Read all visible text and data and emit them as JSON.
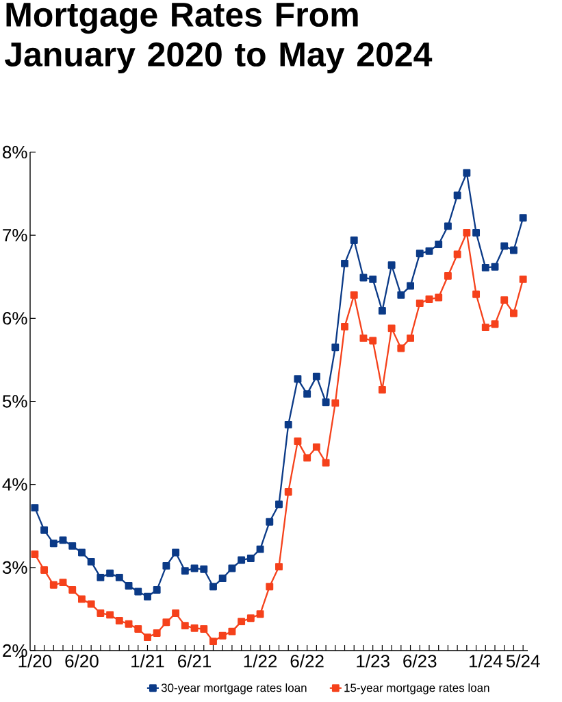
{
  "chart_data": {
    "type": "line",
    "title": "Mortgage Rates From January 2020 to May 2024",
    "categories": [
      "1/20",
      null,
      null,
      null,
      null,
      "6/20",
      null,
      null,
      null,
      null,
      null,
      null,
      "1/21",
      null,
      null,
      null,
      null,
      "6/21",
      null,
      null,
      null,
      null,
      null,
      null,
      "1/22",
      null,
      null,
      null,
      null,
      "6/22",
      null,
      null,
      null,
      null,
      null,
      null,
      "1/23",
      null,
      null,
      null,
      null,
      "6/23",
      null,
      null,
      null,
      null,
      null,
      null,
      "1/24",
      null,
      null,
      null,
      "5/24"
    ],
    "series": [
      {
        "name": "30-year mortgage rates loan",
        "color": "#0b3a87",
        "values": [
          3.72,
          3.45,
          3.29,
          3.33,
          3.26,
          3.18,
          3.07,
          2.88,
          2.93,
          2.88,
          2.78,
          2.71,
          2.65,
          2.73,
          3.02,
          3.18,
          2.96,
          2.99,
          2.98,
          2.77,
          2.87,
          2.99,
          3.09,
          3.11,
          3.22,
          3.55,
          3.76,
          4.72,
          5.27,
          5.09,
          5.3,
          4.99,
          5.65,
          6.66,
          6.94,
          6.49,
          6.47,
          6.09,
          6.64,
          6.28,
          6.39,
          6.78,
          6.81,
          6.89,
          7.11,
          7.48,
          7.75,
          7.03,
          6.61,
          6.62,
          6.87,
          6.82,
          7.21
        ]
      },
      {
        "name": "15-year mortgage rates loan",
        "color": "#f5411b",
        "values": [
          3.16,
          2.97,
          2.79,
          2.82,
          2.73,
          2.62,
          2.56,
          2.45,
          2.43,
          2.36,
          2.32,
          2.26,
          2.16,
          2.21,
          2.34,
          2.45,
          2.3,
          2.27,
          2.26,
          2.11,
          2.18,
          2.23,
          2.35,
          2.39,
          2.44,
          2.77,
          3.01,
          3.91,
          4.52,
          4.32,
          4.45,
          4.26,
          4.98,
          5.9,
          6.28,
          5.76,
          5.73,
          5.14,
          5.88,
          5.64,
          5.76,
          6.18,
          6.23,
          6.25,
          6.51,
          6.77,
          7.03,
          6.29,
          5.89,
          5.93,
          6.22,
          6.06,
          6.47
        ]
      }
    ],
    "ylim": [
      2,
      8
    ],
    "yticks": [
      {
        "value": 2,
        "label": "2%"
      },
      {
        "value": 3,
        "label": "3%"
      },
      {
        "value": 4,
        "label": "4%"
      },
      {
        "value": 5,
        "label": "5%"
      },
      {
        "value": 6,
        "label": "6%"
      },
      {
        "value": 7,
        "label": "7%"
      },
      {
        "value": 8,
        "label": "8%"
      }
    ],
    "marker": "square",
    "line_style": "solid",
    "legend": "bottom"
  }
}
